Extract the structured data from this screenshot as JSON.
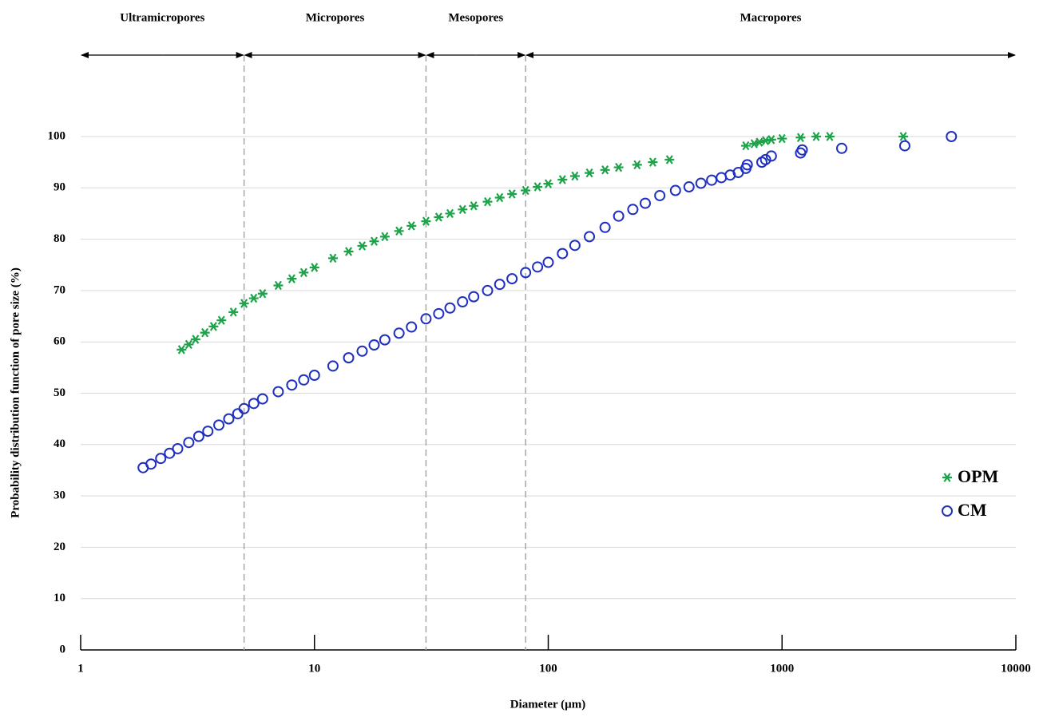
{
  "chart_data": {
    "type": "scatter",
    "x_label": "Diameter (µm)",
    "y_label": "Probability distribution function of pore size (%)",
    "xscale": "log",
    "xlim": [
      1,
      10000
    ],
    "xticks": [
      1,
      10,
      100,
      1000,
      10000
    ],
    "ylim": [
      0,
      100
    ],
    "yticks": [
      0,
      10,
      20,
      30,
      40,
      50,
      60,
      70,
      80,
      90,
      100
    ],
    "grid": true,
    "legend": "right",
    "regions": {
      "labels": [
        "Ultramicropores",
        "Micropores",
        "Mesopores",
        "Macropores"
      ],
      "bounds": [
        5,
        30,
        80
      ]
    },
    "series": [
      {
        "name": "OPM",
        "color": "#1fa34a",
        "marker": "asterisk",
        "x": [
          2.7,
          2.9,
          3.1,
          3.4,
          3.7,
          4,
          4.5,
          5,
          5.5,
          6,
          7,
          8,
          9,
          10,
          12,
          14,
          16,
          18,
          20,
          23,
          26,
          30,
          34,
          38,
          43,
          48,
          55,
          62,
          70,
          80,
          90,
          100,
          115,
          130,
          150,
          175,
          200,
          240,
          280,
          330,
          700,
          760,
          800,
          850,
          900,
          1000,
          1200,
          1400,
          1600,
          3300
        ],
        "values": [
          58.5,
          59.5,
          60.5,
          61.8,
          63,
          64.2,
          65.8,
          67.5,
          68.5,
          69.4,
          71,
          72.3,
          73.5,
          74.5,
          76.3,
          77.6,
          78.7,
          79.6,
          80.5,
          81.6,
          82.6,
          83.5,
          84.3,
          85,
          85.8,
          86.5,
          87.3,
          88.1,
          88.8,
          89.5,
          90.2,
          90.8,
          91.6,
          92.3,
          92.9,
          93.5,
          94,
          94.5,
          95,
          95.5,
          98.2,
          98.6,
          98.9,
          99.2,
          99.4,
          99.6,
          99.8,
          100,
          100,
          100
        ]
      },
      {
        "name": "CM",
        "color": "#1f2fc0",
        "marker": "circle",
        "x": [
          1.85,
          2,
          2.2,
          2.4,
          2.6,
          2.9,
          3.2,
          3.5,
          3.9,
          4.3,
          4.7,
          5,
          5.5,
          6,
          7,
          8,
          9,
          10,
          12,
          14,
          16,
          18,
          20,
          23,
          26,
          30,
          34,
          38,
          43,
          48,
          55,
          62,
          70,
          80,
          90,
          100,
          115,
          130,
          150,
          175,
          200,
          230,
          260,
          300,
          350,
          400,
          450,
          500,
          550,
          600,
          650,
          700,
          710,
          820,
          850,
          900,
          1200,
          1220,
          1800,
          3350,
          5300
        ],
        "values": [
          35.5,
          36.2,
          37.3,
          38.3,
          39.2,
          40.4,
          41.6,
          42.6,
          43.8,
          45,
          46,
          47,
          48,
          48.9,
          50.3,
          51.6,
          52.6,
          53.5,
          55.3,
          56.9,
          58.2,
          59.4,
          60.4,
          61.7,
          62.9,
          64.5,
          65.5,
          66.6,
          67.8,
          68.8,
          70,
          71.2,
          72.3,
          73.5,
          74.6,
          75.5,
          77.2,
          78.8,
          80.5,
          82.3,
          84.5,
          85.8,
          87,
          88.5,
          89.5,
          90.2,
          90.9,
          91.5,
          92,
          92.5,
          93,
          93.8,
          94.5,
          95,
          95.5,
          96.2,
          96.8,
          97.4,
          97.7,
          98.2,
          100
        ]
      }
    ]
  }
}
